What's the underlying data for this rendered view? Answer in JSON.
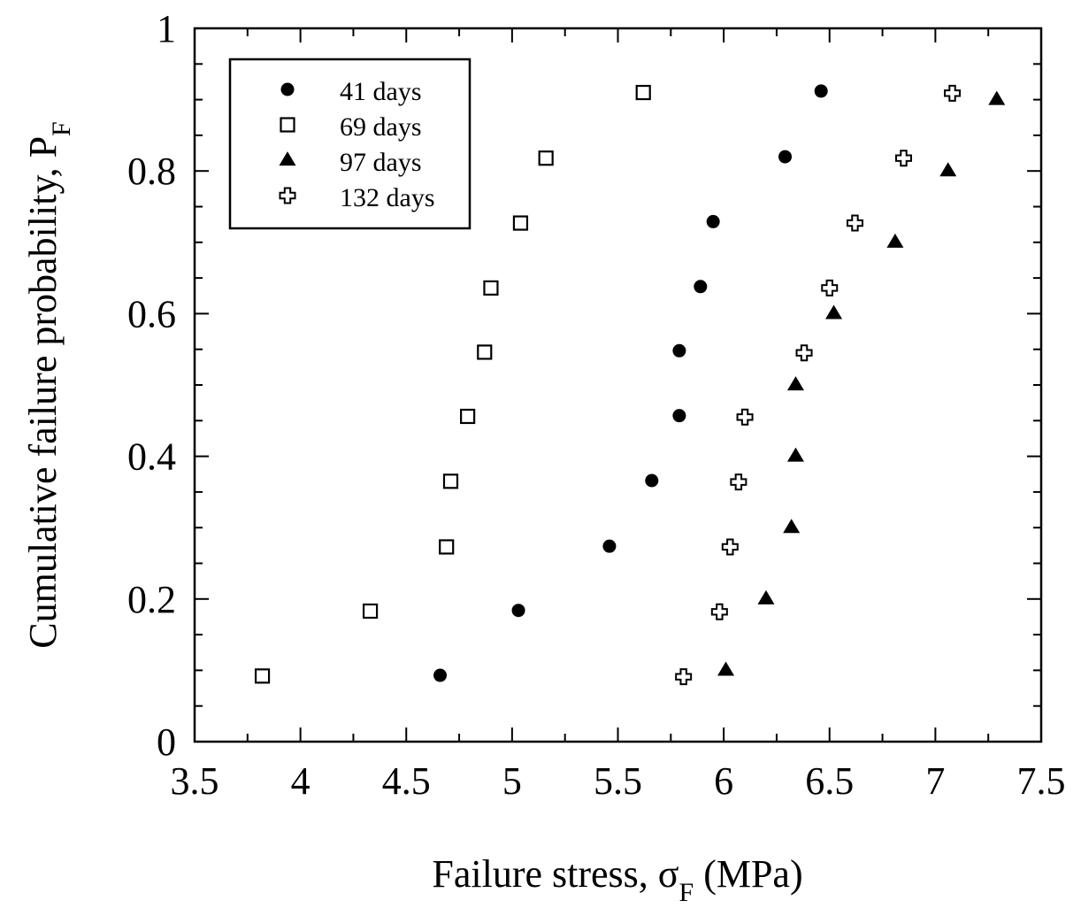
{
  "chart_data": {
    "type": "scatter",
    "xlabel": "Failure stress, σ_F (MPa)",
    "ylabel": "Cumulative failure probability, P_F",
    "xlabel_parts": {
      "main": "Failure stress, σ",
      "sub": "F",
      "tail": " (MPa)"
    },
    "ylabel_parts": {
      "main": "Cumulative failure probability, P",
      "sub": "F"
    },
    "xlim": [
      3.5,
      7.5
    ],
    "ylim": [
      0,
      1
    ],
    "x_ticks": [
      "3.5",
      "4",
      "4.5",
      "5",
      "5.5",
      "6",
      "6.5",
      "7",
      "7.5"
    ],
    "y_ticks": [
      "0",
      "0.2",
      "0.4",
      "0.6",
      "0.8",
      "1"
    ],
    "legend_position": "top-left",
    "grid": false,
    "series": [
      {
        "name": "41 days",
        "marker": "filled-circle",
        "points": [
          {
            "x": 4.66,
            "y": 0.093
          },
          {
            "x": 5.03,
            "y": 0.184
          },
          {
            "x": 5.46,
            "y": 0.274
          },
          {
            "x": 5.66,
            "y": 0.366
          },
          {
            "x": 5.79,
            "y": 0.457
          },
          {
            "x": 5.79,
            "y": 0.548
          },
          {
            "x": 5.89,
            "y": 0.638
          },
          {
            "x": 5.95,
            "y": 0.729
          },
          {
            "x": 6.29,
            "y": 0.82
          },
          {
            "x": 6.46,
            "y": 0.912
          }
        ]
      },
      {
        "name": "69 days",
        "marker": "open-square",
        "points": [
          {
            "x": 3.82,
            "y": 0.092
          },
          {
            "x": 4.33,
            "y": 0.183
          },
          {
            "x": 4.69,
            "y": 0.273
          },
          {
            "x": 4.71,
            "y": 0.365
          },
          {
            "x": 4.79,
            "y": 0.456
          },
          {
            "x": 4.87,
            "y": 0.546
          },
          {
            "x": 4.9,
            "y": 0.636
          },
          {
            "x": 5.04,
            "y": 0.727
          },
          {
            "x": 5.16,
            "y": 0.818
          },
          {
            "x": 5.62,
            "y": 0.91
          }
        ]
      },
      {
        "name": "97 days",
        "marker": "filled-triangle",
        "points": [
          {
            "x": 6.01,
            "y": 0.1
          },
          {
            "x": 6.2,
            "y": 0.2
          },
          {
            "x": 6.32,
            "y": 0.3
          },
          {
            "x": 6.34,
            "y": 0.4
          },
          {
            "x": 6.34,
            "y": 0.5
          },
          {
            "x": 6.52,
            "y": 0.6
          },
          {
            "x": 6.81,
            "y": 0.7
          },
          {
            "x": 7.06,
            "y": 0.8
          },
          {
            "x": 7.29,
            "y": 0.9
          }
        ]
      },
      {
        "name": "132 days",
        "marker": "open-cross",
        "points": [
          {
            "x": 5.81,
            "y": 0.091
          },
          {
            "x": 5.98,
            "y": 0.182
          },
          {
            "x": 6.03,
            "y": 0.273
          },
          {
            "x": 6.07,
            "y": 0.364
          },
          {
            "x": 6.1,
            "y": 0.455
          },
          {
            "x": 6.38,
            "y": 0.545
          },
          {
            "x": 6.5,
            "y": 0.636
          },
          {
            "x": 6.62,
            "y": 0.727
          },
          {
            "x": 6.85,
            "y": 0.818
          },
          {
            "x": 7.08,
            "y": 0.909
          }
        ]
      }
    ]
  }
}
